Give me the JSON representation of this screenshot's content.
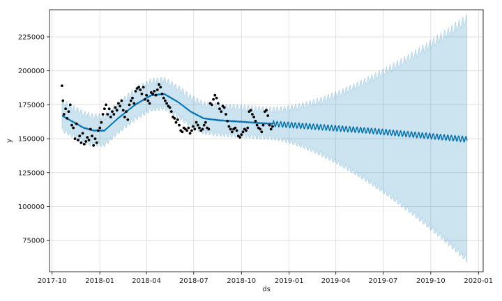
{
  "chart_data": {
    "type": "line",
    "title": "",
    "xlabel": "ds",
    "ylabel": "y",
    "grid": true,
    "xlim": [
      "2017-09-26",
      "2020-01-10"
    ],
    "ylim": [
      52000,
      245000
    ],
    "x_ticks": [
      "2017-10-01",
      "2018-01-01",
      "2018-04-01",
      "2018-07-01",
      "2018-10-01",
      "2019-01-01",
      "2019-04-01",
      "2019-07-01",
      "2019-10-01",
      "2020-01-01"
    ],
    "x_tick_labels": [
      "2017-10",
      "2018-01",
      "2018-04",
      "2018-07",
      "2018-10",
      "2019-01",
      "2019-04",
      "2019-07",
      "2019-10",
      "2020-01"
    ],
    "y_ticks": [
      75000,
      100000,
      125000,
      150000,
      175000,
      200000,
      225000
    ],
    "y_tick_labels": [
      "75000",
      "100000",
      "125000",
      "150000",
      "175000",
      "200000",
      "225000"
    ],
    "colors": {
      "forecast": "#0072B2",
      "band": "#0072B2",
      "points": "#000000",
      "grid": "#d9d9d9"
    },
    "trend": {
      "x": [
        "2017-10-20",
        "2017-12-01",
        "2017-12-20",
        "2018-01-10",
        "2018-02-05",
        "2018-03-10",
        "2018-04-10",
        "2018-05-05",
        "2018-06-01",
        "2018-06-25",
        "2018-07-20",
        "2018-08-20",
        "2018-10-01",
        "2018-11-05",
        "2018-12-01",
        "2019-06-01",
        "2019-12-10"
      ],
      "y": [
        167000,
        158000,
        156000,
        156000,
        165000,
        175000,
        182000,
        183000,
        177000,
        170000,
        165000,
        163500,
        162500,
        161500,
        161000,
        156000,
        149500
      ]
    },
    "history_end": "2018-12-01",
    "forecast_end": "2019-12-10",
    "weekly_amplitude": 2000,
    "band_history_half_width": 10000,
    "band_end_upper": 237000,
    "band_end_lower": 62000,
    "observed": {
      "x": [
        "2017-10-20",
        "2017-10-22",
        "2017-10-24",
        "2017-10-27",
        "2017-10-30",
        "2017-11-02",
        "2017-11-05",
        "2017-11-08",
        "2017-11-11",
        "2017-11-14",
        "2017-11-17",
        "2017-11-20",
        "2017-11-23",
        "2017-11-26",
        "2017-11-29",
        "2017-12-02",
        "2017-12-05",
        "2017-12-08",
        "2017-12-11",
        "2017-12-14",
        "2017-12-17",
        "2017-12-20",
        "2017-12-23",
        "2017-12-26",
        "2017-12-29",
        "2018-01-01",
        "2018-01-04",
        "2018-01-07",
        "2018-01-10",
        "2018-01-13",
        "2018-01-16",
        "2018-01-19",
        "2018-01-22",
        "2018-01-25",
        "2018-01-28",
        "2018-01-31",
        "2018-02-03",
        "2018-02-06",
        "2018-02-09",
        "2018-02-12",
        "2018-02-15",
        "2018-02-18",
        "2018-02-21",
        "2018-02-24",
        "2018-02-27",
        "2018-03-02",
        "2018-03-05",
        "2018-03-08",
        "2018-03-11",
        "2018-03-14",
        "2018-03-17",
        "2018-03-20",
        "2018-03-23",
        "2018-03-26",
        "2018-03-29",
        "2018-04-01",
        "2018-04-04",
        "2018-04-07",
        "2018-04-10",
        "2018-04-13",
        "2018-04-16",
        "2018-04-19",
        "2018-04-22",
        "2018-04-25",
        "2018-04-28",
        "2018-05-01",
        "2018-05-04",
        "2018-05-07",
        "2018-05-10",
        "2018-05-13",
        "2018-05-16",
        "2018-05-19",
        "2018-05-22",
        "2018-05-25",
        "2018-05-28",
        "2018-05-31",
        "2018-06-03",
        "2018-06-06",
        "2018-06-09",
        "2018-06-12",
        "2018-06-15",
        "2018-06-18",
        "2018-06-21",
        "2018-06-24",
        "2018-06-27",
        "2018-06-30",
        "2018-07-03",
        "2018-07-06",
        "2018-07-09",
        "2018-07-12",
        "2018-07-15",
        "2018-07-18",
        "2018-07-21",
        "2018-07-24",
        "2018-07-27",
        "2018-07-30",
        "2018-08-02",
        "2018-08-05",
        "2018-08-08",
        "2018-08-11",
        "2018-08-14",
        "2018-08-17",
        "2018-08-20",
        "2018-08-23",
        "2018-08-26",
        "2018-08-29",
        "2018-09-01",
        "2018-09-04",
        "2018-09-07",
        "2018-09-10",
        "2018-09-13",
        "2018-09-16",
        "2018-09-19",
        "2018-09-22",
        "2018-09-25",
        "2018-09-28",
        "2018-10-01",
        "2018-10-04",
        "2018-10-07",
        "2018-10-10",
        "2018-10-13",
        "2018-10-16",
        "2018-10-19",
        "2018-10-22",
        "2018-10-25",
        "2018-10-28",
        "2018-10-31",
        "2018-11-03",
        "2018-11-06",
        "2018-11-09",
        "2018-11-12",
        "2018-11-15",
        "2018-11-18",
        "2018-11-21",
        "2018-11-24",
        "2018-11-27",
        "2018-11-30"
      ],
      "y": [
        189000,
        178000,
        168000,
        172000,
        165000,
        170000,
        175000,
        160000,
        158000,
        150000,
        161000,
        149000,
        152000,
        147000,
        154000,
        146000,
        148000,
        151000,
        149000,
        157000,
        152000,
        145000,
        150000,
        147000,
        156000,
        158000,
        162000,
        168000,
        172000,
        175000,
        168000,
        172000,
        166000,
        170000,
        168000,
        173000,
        171000,
        176000,
        174000,
        178000,
        171000,
        166000,
        170000,
        164000,
        175000,
        178000,
        180000,
        176000,
        185000,
        187000,
        188000,
        186000,
        183000,
        188000,
        179000,
        182000,
        178000,
        176000,
        184000,
        183000,
        185000,
        182000,
        186000,
        190000,
        188000,
        183000,
        180000,
        178000,
        176000,
        174000,
        173000,
        170000,
        166000,
        165000,
        162000,
        164000,
        160000,
        156000,
        155000,
        158000,
        157000,
        156000,
        158000,
        154000,
        156000,
        159000,
        157000,
        162000,
        160000,
        158000,
        156000,
        157000,
        160000,
        162000,
        158000,
        157000,
        176000,
        175000,
        179000,
        182000,
        180000,
        176000,
        172000,
        170000,
        174000,
        173000,
        168000,
        163000,
        159000,
        157000,
        155000,
        157000,
        158000,
        156000,
        152000,
        151000,
        153000,
        155000,
        157000,
        156000,
        158000,
        170000,
        171000,
        168000,
        166000,
        163000,
        160000,
        158000,
        157000,
        155000,
        160000,
        170000,
        171000,
        167000,
        160000,
        157000,
        159000
      ]
    }
  }
}
